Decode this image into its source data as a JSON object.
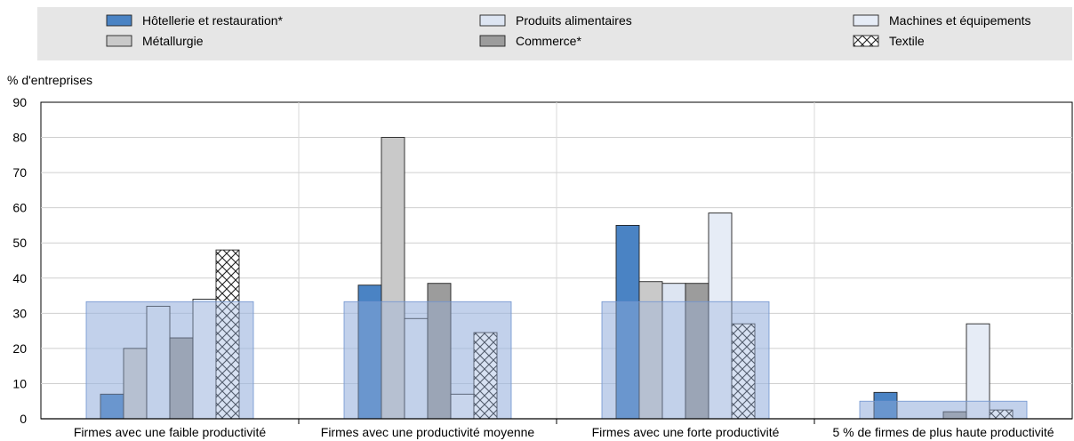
{
  "chart_data": {
    "type": "bar",
    "ylabel": "% d'entreprises",
    "ylim": [
      0,
      90
    ],
    "yticks": [
      0,
      10,
      20,
      30,
      40,
      50,
      60,
      70,
      80,
      90
    ],
    "grid": "horizontal",
    "legend_position": "top",
    "categories": [
      "Firmes avec une faible productivité",
      "Firmes avec une productivité moyenne",
      "Firmes avec une forte productivité",
      "5 % de firmes de plus haute productivité"
    ],
    "series": [
      {
        "name": "Hôtellerie et restauration*",
        "color": "#4a83c4",
        "pattern": "solid",
        "values": [
          7,
          38,
          55,
          7.5
        ]
      },
      {
        "name": "Métallurgie",
        "color": "#c9c9c9",
        "pattern": "solid",
        "values": [
          20,
          80,
          39,
          0
        ]
      },
      {
        "name": "Produits alimentaires",
        "color": "#dde5f2",
        "pattern": "solid",
        "values": [
          32,
          28.5,
          38.5,
          0
        ]
      },
      {
        "name": "Commerce*",
        "color": "#9c9c9c",
        "pattern": "solid",
        "values": [
          23,
          38.5,
          38.5,
          2
        ]
      },
      {
        "name": "Machines et équipements",
        "color": "#e6ecf6",
        "pattern": "solid",
        "values": [
          34,
          7,
          58.5,
          27
        ]
      },
      {
        "name": "Textile",
        "color": "#ffffff",
        "pattern": "crosshatch",
        "values": [
          48,
          24.5,
          27,
          2.5
        ]
      }
    ],
    "reference_band": {
      "value": 33.3,
      "value_last": 5,
      "color": "#9cb5df"
    }
  }
}
